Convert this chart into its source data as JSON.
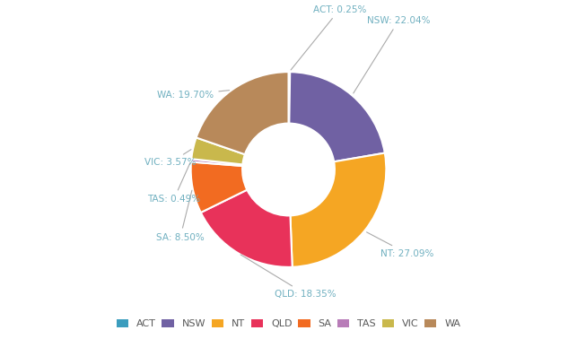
{
  "labels": [
    "ACT",
    "NSW",
    "NT",
    "QLD",
    "SA",
    "TAS",
    "VIC",
    "WA"
  ],
  "values": [
    0.25,
    22.04,
    27.09,
    18.35,
    8.5,
    0.49,
    3.57,
    19.7
  ],
  "colors": [
    "#3b9dbe",
    "#7061a3",
    "#f5a623",
    "#e8325a",
    "#f26b21",
    "#b87cb8",
    "#c9b84c",
    "#b8895a"
  ],
  "background_color": "#ffffff",
  "text_color": "#595959",
  "label_color": "#70b0c0",
  "line_color": "#aaaaaa",
  "annotation_positions": {
    "ACT": {
      "xt": 0.18,
      "yt": 1.18,
      "ha": "left"
    },
    "NSW": {
      "xt": 0.58,
      "yt": 1.1,
      "ha": "left"
    },
    "NT": {
      "xt": 0.68,
      "yt": -0.62,
      "ha": "left"
    },
    "QLD": {
      "xt": -0.1,
      "yt": -0.92,
      "ha": "left"
    },
    "SA": {
      "xt": -0.62,
      "yt": -0.5,
      "ha": "right"
    },
    "TAS": {
      "xt": -0.65,
      "yt": -0.22,
      "ha": "right"
    },
    "VIC": {
      "xt": -0.68,
      "yt": 0.05,
      "ha": "right"
    },
    "WA": {
      "xt": -0.55,
      "yt": 0.55,
      "ha": "right"
    }
  }
}
